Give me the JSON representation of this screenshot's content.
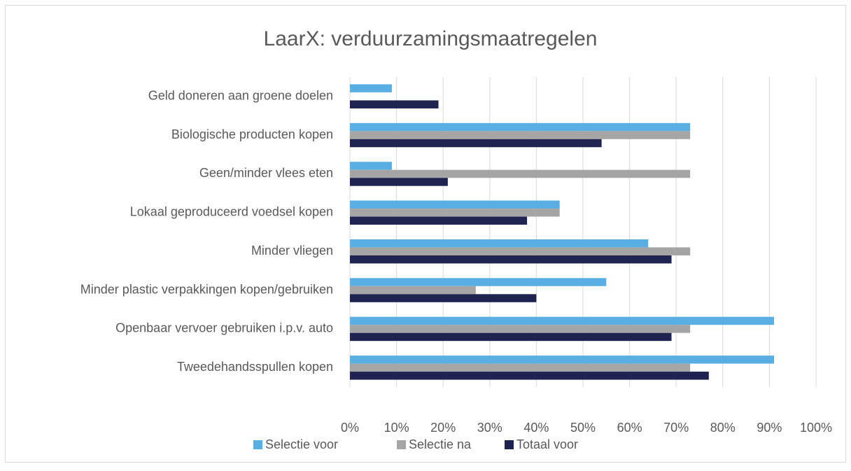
{
  "chart_data": {
    "type": "bar",
    "orientation": "horizontal",
    "title": "LaarX: verduurzamingsmaatregelen",
    "categories": [
      "Geld doneren aan groene doelen",
      "Biologische producten kopen",
      "Geen/minder vlees eten",
      "Lokaal geproduceerd voedsel kopen",
      "Minder vliegen",
      "Minder plastic verpakkingen kopen/gebruiken",
      "Openbaar vervoer gebruiken i.p.v. auto",
      "Tweedehandsspullen kopen"
    ],
    "series": [
      {
        "name": "Selectie voor",
        "color": "#5aafe2",
        "values": [
          9,
          73,
          9,
          45,
          64,
          55,
          91,
          91
        ]
      },
      {
        "name": "Selectie na",
        "color": "#a5a5a5",
        "values": [
          0,
          73,
          73,
          45,
          73,
          27,
          73,
          73
        ]
      },
      {
        "name": "Totaal voor",
        "color": "#1f2350",
        "values": [
          19,
          54,
          21,
          38,
          69,
          40,
          69,
          77
        ]
      }
    ],
    "xlim": [
      0,
      100
    ],
    "xticks": [
      {
        "value": 0,
        "label": "0%"
      },
      {
        "value": 10,
        "label": "10%"
      },
      {
        "value": 20,
        "label": "20%"
      },
      {
        "value": 30,
        "label": "30%"
      },
      {
        "value": 40,
        "label": "40%"
      },
      {
        "value": 50,
        "label": "50%"
      },
      {
        "value": 60,
        "label": "60%"
      },
      {
        "value": 70,
        "label": "70%"
      },
      {
        "value": 80,
        "label": "80%"
      },
      {
        "value": 90,
        "label": "90%"
      },
      {
        "value": 100,
        "label": "100%"
      }
    ],
    "grid": true,
    "legend": "bottom"
  }
}
